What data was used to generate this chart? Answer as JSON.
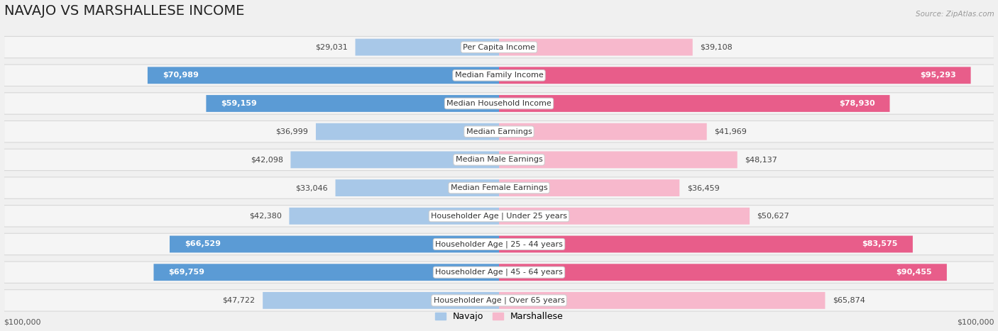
{
  "title": "NAVAJO VS MARSHALLESE INCOME",
  "source": "Source: ZipAtlas.com",
  "categories": [
    "Per Capita Income",
    "Median Family Income",
    "Median Household Income",
    "Median Earnings",
    "Median Male Earnings",
    "Median Female Earnings",
    "Householder Age | Under 25 years",
    "Householder Age | 25 - 44 years",
    "Householder Age | 45 - 64 years",
    "Householder Age | Over 65 years"
  ],
  "navajo_values": [
    29031,
    70989,
    59159,
    36999,
    42098,
    33046,
    42380,
    66529,
    69759,
    47722
  ],
  "marshallese_values": [
    39108,
    95293,
    78930,
    41969,
    48137,
    36459,
    50627,
    83575,
    90455,
    65874
  ],
  "navajo_light_color": "#a8c8e8",
  "navajo_dark_color": "#5b9bd5",
  "marshallese_light_color": "#f7b8cc",
  "marshallese_dark_color": "#e85d8a",
  "max_value": 100000,
  "background_color": "#f0f0f0",
  "row_bg_color": "#f5f5f5",
  "row_border_color": "#d8d8d8",
  "title_fontsize": 14,
  "label_fontsize": 8,
  "value_fontsize": 8,
  "legend_fontsize": 9,
  "inside_label_threshold_nav": 55000,
  "inside_label_threshold_mar": 60000
}
